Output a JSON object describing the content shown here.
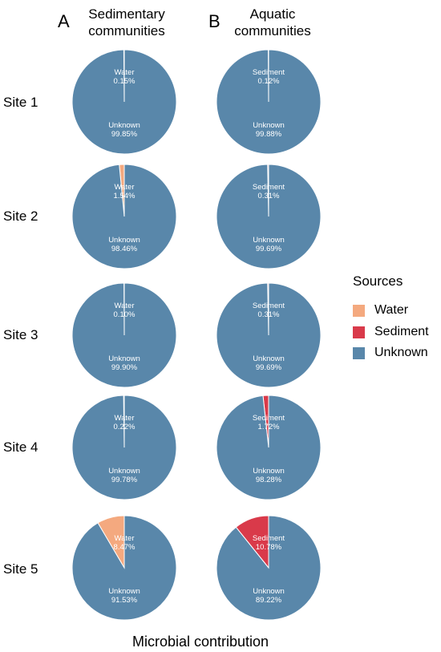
{
  "chart_data": {
    "type": "pie",
    "panels": [
      {
        "letter": "A",
        "title_line1": "Sedimentary",
        "title_line2": "communities"
      },
      {
        "letter": "B",
        "title_line1": "Aquatic",
        "title_line2": "communities"
      }
    ],
    "sites": [
      "Site 1",
      "Site 2",
      "Site 3",
      "Site 4",
      "Site 5"
    ],
    "pies": [
      [
        [
          {
            "source": "Water",
            "value": 0.15,
            "label": "0.15%"
          },
          {
            "source": "Unknown",
            "value": 99.85,
            "label": "99.85%"
          }
        ],
        [
          {
            "source": "Water",
            "value": 1.54,
            "label": "1.54%"
          },
          {
            "source": "Unknown",
            "value": 98.46,
            "label": "98.46%"
          }
        ],
        [
          {
            "source": "Water",
            "value": 0.1,
            "label": "0.10%"
          },
          {
            "source": "Unknown",
            "value": 99.9,
            "label": "99.90%"
          }
        ],
        [
          {
            "source": "Water",
            "value": 0.22,
            "label": "0.22%"
          },
          {
            "source": "Unknown",
            "value": 99.78,
            "label": "99.78%"
          }
        ],
        [
          {
            "source": "Water",
            "value": 8.47,
            "label": "8.47%"
          },
          {
            "source": "Unknown",
            "value": 91.53,
            "label": "91.53%"
          }
        ]
      ],
      [
        [
          {
            "source": "Sediment",
            "value": 0.12,
            "label": "0.12%"
          },
          {
            "source": "Unknown",
            "value": 99.88,
            "label": "99.88%"
          }
        ],
        [
          {
            "source": "Sediment",
            "value": 0.31,
            "label": "0.31%"
          },
          {
            "source": "Unknown",
            "value": 99.69,
            "label": "99.69%"
          }
        ],
        [
          {
            "source": "Sediment",
            "value": 0.31,
            "label": "0.31%"
          },
          {
            "source": "Unknown",
            "value": 99.69,
            "label": "99.69%"
          }
        ],
        [
          {
            "source": "Sediment",
            "value": 1.72,
            "label": "1.72%"
          },
          {
            "source": "Unknown",
            "value": 98.28,
            "label": "98.28%"
          }
        ],
        [
          {
            "source": "Sediment",
            "value": 10.78,
            "label": "10.78%"
          },
          {
            "source": "Unknown",
            "value": 89.22,
            "label": "89.22%"
          }
        ]
      ]
    ],
    "xlabel": "Microbial contribution",
    "legend": {
      "title": "Sources",
      "placement": "right",
      "items": [
        {
          "name": "Water",
          "color": "#F4A97F"
        },
        {
          "name": "Sediment",
          "color": "#D93A4A"
        },
        {
          "name": "Unknown",
          "color": "#5987AA"
        }
      ]
    }
  }
}
